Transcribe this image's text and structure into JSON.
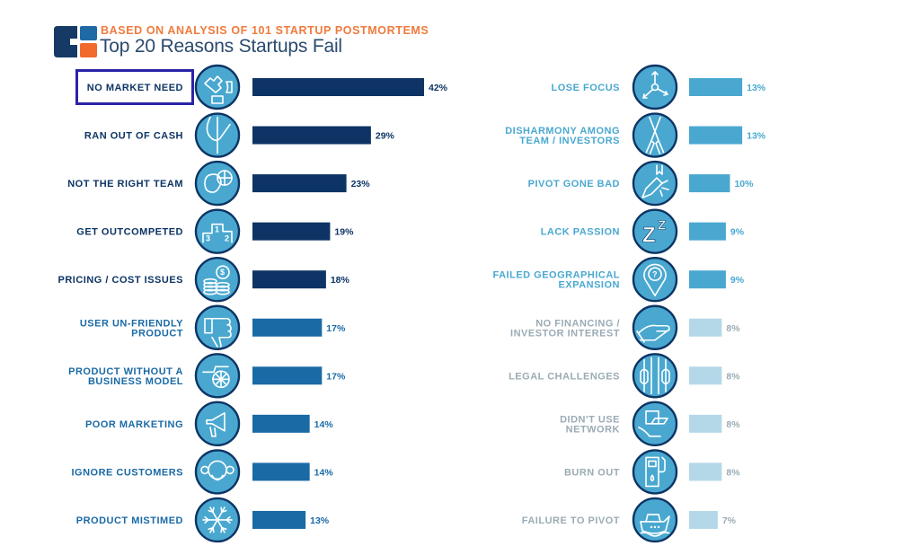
{
  "header": {
    "subtitle": "BASED ON ANALYSIS OF 101 STARTUP POSTMORTEMS",
    "title": "Top 20 Reasons Startups Fail"
  },
  "colors": {
    "navy": "#0d3464",
    "mid_blue": "#1a6aa6",
    "light_blue": "#4aa8d0",
    "pale_blue": "#b5d8e8",
    "gray_text": "#9aabb5",
    "orange": "#f07a3c",
    "highlight": "#2a23a8",
    "icon_fill": "#4aa8d0",
    "icon_stroke": "#0d3464"
  },
  "chart_data": {
    "type": "bar",
    "orientation": "horizontal",
    "title": "Top 20 Reasons Startups Fail",
    "subtitle": "BASED ON ANALYSIS OF 101 STARTUP POSTMORTEMS",
    "unit": "%",
    "xlim": [
      0,
      42
    ],
    "highlighted": "NO MARKET NEED",
    "columns": [
      {
        "items": [
          {
            "label": [
              "NO MARKET NEED"
            ],
            "value": 42,
            "pct": "42%",
            "tier": "navy",
            "icon": "puzzle-globe-icon"
          },
          {
            "label": [
              "RAN OUT OF CASH"
            ],
            "value": 29,
            "pct": "29%",
            "tier": "navy",
            "icon": "empty-pocket-icon"
          },
          {
            "label": [
              "NOT THE RIGHT TEAM"
            ],
            "value": 23,
            "pct": "23%",
            "tier": "navy",
            "icon": "basketball-player-icon"
          },
          {
            "label": [
              "GET OUTCOMPETED"
            ],
            "value": 19,
            "pct": "19%",
            "tier": "navy",
            "icon": "podium-icon"
          },
          {
            "label": [
              "PRICING / COST ISSUES"
            ],
            "value": 18,
            "pct": "18%",
            "tier": "navy",
            "icon": "coins-icon"
          },
          {
            "label": [
              "USER UN-FRIENDLY",
              "PRODUCT"
            ],
            "value": 17,
            "pct": "17%",
            "tier": "mid_blue",
            "icon": "thumbs-down-icon"
          },
          {
            "label": [
              "PRODUCT WITHOUT A",
              "BUSINESS MODEL"
            ],
            "value": 17,
            "pct": "17%",
            "tier": "mid_blue",
            "icon": "cart-icon"
          },
          {
            "label": [
              "POOR MARKETING"
            ],
            "value": 14,
            "pct": "14%",
            "tier": "mid_blue",
            "icon": "megaphone-icon"
          },
          {
            "label": [
              "IGNORE CUSTOMERS"
            ],
            "value": 14,
            "pct": "14%",
            "tier": "mid_blue",
            "icon": "monkey-icon"
          },
          {
            "label": [
              "PRODUCT MISTIMED"
            ],
            "value": 13,
            "pct": "13%",
            "tier": "mid_blue",
            "icon": "snowflake-icon"
          }
        ]
      },
      {
        "items": [
          {
            "label": [
              "LOSE FOCUS"
            ],
            "value": 13,
            "pct": "13%",
            "tier": "light_blue",
            "icon": "arrows-diverge-icon"
          },
          {
            "label": [
              "DISHARMONY AMONG",
              "TEAM / INVESTORS"
            ],
            "value": 13,
            "pct": "13%",
            "tier": "light_blue",
            "icon": "crossed-oars-icon"
          },
          {
            "label": [
              "PIVOT GONE BAD"
            ],
            "value": 10,
            "pct": "10%",
            "tier": "light_blue",
            "icon": "broken-pencil-icon"
          },
          {
            "label": [
              "LACK PASSION"
            ],
            "value": 9,
            "pct": "9%",
            "tier": "light_blue",
            "icon": "sleep-zz-icon"
          },
          {
            "label": [
              "FAILED GEOGRAPHICAL",
              "EXPANSION"
            ],
            "value": 9,
            "pct": "9%",
            "tier": "light_blue",
            "icon": "map-pin-question-icon"
          },
          {
            "label": [
              "NO FINANCING /",
              "INVESTOR INTEREST"
            ],
            "value": 8,
            "pct": "8%",
            "tier": "pale_blue",
            "icon": "open-hand-icon"
          },
          {
            "label": [
              "LEGAL CHALLENGES"
            ],
            "value": 8,
            "pct": "8%",
            "tier": "pale_blue",
            "icon": "jail-bars-icon"
          },
          {
            "label": [
              "DIDN'T USE",
              "NETWORK"
            ],
            "value": 8,
            "pct": "8%",
            "tier": "pale_blue",
            "icon": "laptop-hand-icon"
          },
          {
            "label": [
              "BURN OUT"
            ],
            "value": 8,
            "pct": "8%",
            "tier": "pale_blue",
            "icon": "fuel-pump-icon"
          },
          {
            "label": [
              "FAILURE TO PIVOT"
            ],
            "value": 7,
            "pct": "7%",
            "tier": "pale_blue",
            "icon": "ship-icon"
          }
        ]
      }
    ]
  }
}
